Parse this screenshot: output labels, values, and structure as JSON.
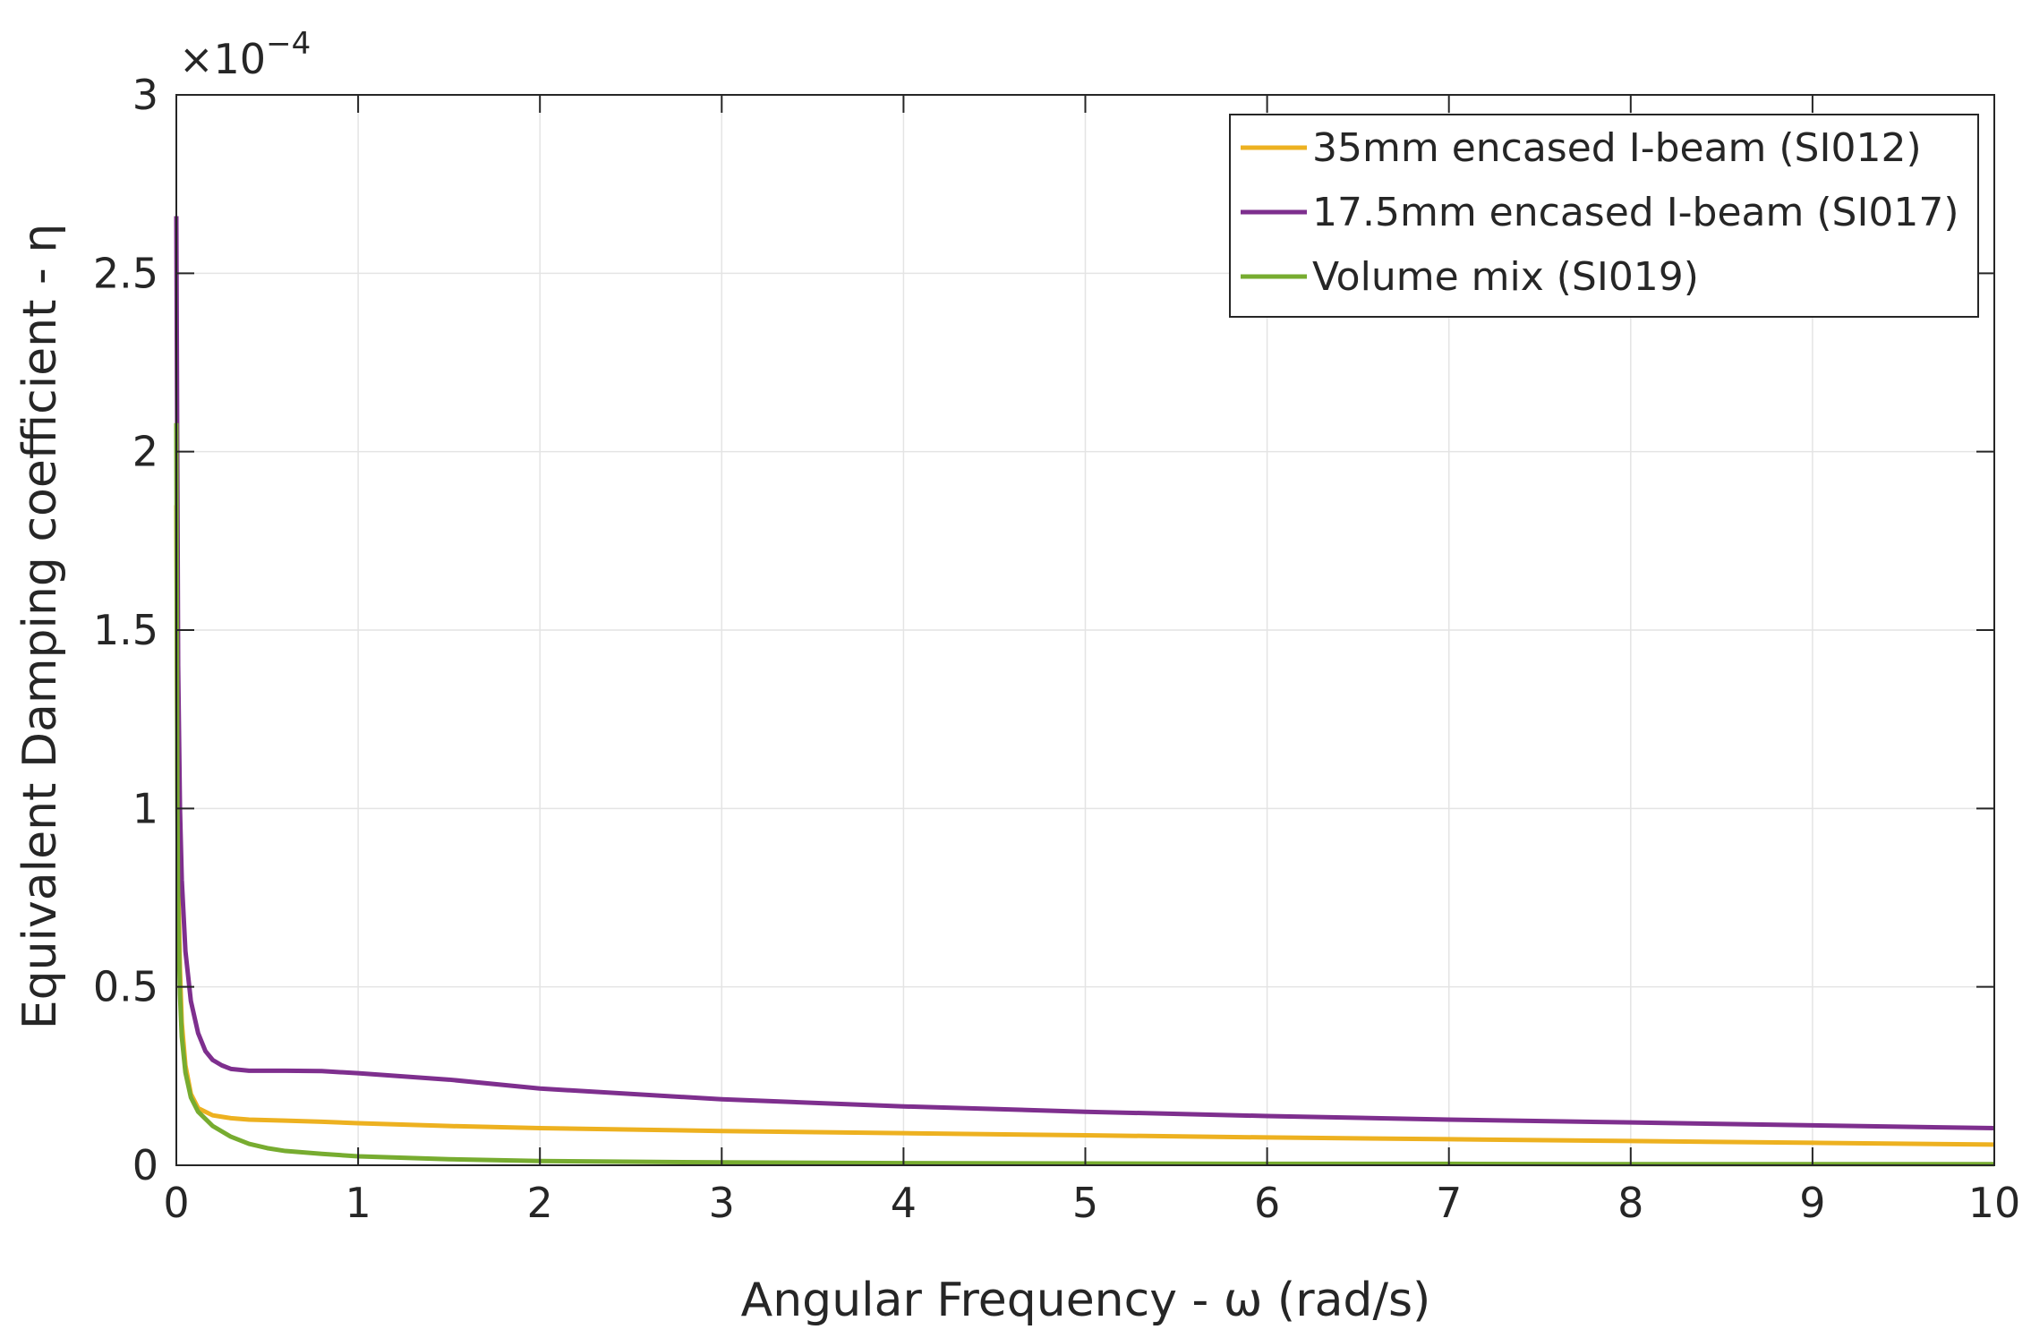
{
  "chart_data": {
    "type": "line",
    "title": "",
    "xlabel": "Angular Frequency - ω (rad/s)",
    "ylabel": "Equivalent Damping coefficient - η",
    "xlim": [
      0,
      10
    ],
    "ylim": [
      0,
      3
    ],
    "y_scale_label": "×10",
    "y_scale_exponent": "−4",
    "x_ticks": [
      0,
      1,
      2,
      3,
      4,
      5,
      6,
      7,
      8,
      9,
      10
    ],
    "x_tick_labels": [
      "0",
      "1",
      "2",
      "3",
      "4",
      "5",
      "6",
      "7",
      "8",
      "9",
      "10"
    ],
    "y_ticks": [
      0,
      0.5,
      1,
      1.5,
      2,
      2.5,
      3
    ],
    "y_tick_labels": [
      "0",
      "0.5",
      "1",
      "1.5",
      "2",
      "2.5",
      "3"
    ],
    "grid": true,
    "legend_position": "top-right",
    "series": [
      {
        "name": "35mm encased I-beam (SI012)",
        "color": "#EDB120",
        "x": [
          0,
          0.005,
          0.01,
          0.02,
          0.03,
          0.05,
          0.08,
          0.12,
          0.2,
          0.3,
          0.4,
          0.6,
          0.8,
          1,
          1.5,
          2,
          3,
          4,
          5,
          6,
          7,
          8,
          9,
          10
        ],
        "y": [
          1.85,
          1.2,
          0.8,
          0.55,
          0.4,
          0.28,
          0.2,
          0.16,
          0.14,
          0.132,
          0.128,
          0.125,
          0.122,
          0.118,
          0.11,
          0.104,
          0.096,
          0.09,
          0.084,
          0.078,
          0.073,
          0.068,
          0.063,
          0.058
        ]
      },
      {
        "name": "17.5mm encased I-beam (SI017)",
        "color": "#7E2F8E",
        "x": [
          0,
          0.005,
          0.01,
          0.02,
          0.03,
          0.05,
          0.08,
          0.12,
          0.16,
          0.2,
          0.25,
          0.3,
          0.4,
          0.6,
          0.8,
          1,
          1.5,
          2,
          3,
          4,
          5,
          6,
          7,
          8,
          9,
          10
        ],
        "y": [
          2.66,
          2.0,
          1.4,
          1.0,
          0.8,
          0.6,
          0.46,
          0.37,
          0.32,
          0.295,
          0.28,
          0.27,
          0.265,
          0.265,
          0.264,
          0.258,
          0.24,
          0.215,
          0.185,
          0.165,
          0.15,
          0.138,
          0.128,
          0.12,
          0.112,
          0.104
        ]
      },
      {
        "name": "Volume mix (SI019)",
        "color": "#77AC30",
        "x": [
          0,
          0.003,
          0.006,
          0.01,
          0.02,
          0.03,
          0.05,
          0.08,
          0.12,
          0.2,
          0.3,
          0.4,
          0.5,
          0.6,
          0.8,
          1,
          1.5,
          2,
          3,
          4,
          5,
          6,
          7,
          8,
          9,
          10
        ],
        "y": [
          2.08,
          1.5,
          1.0,
          0.72,
          0.48,
          0.36,
          0.26,
          0.19,
          0.15,
          0.11,
          0.08,
          0.06,
          0.048,
          0.04,
          0.032,
          0.025,
          0.017,
          0.012,
          0.008,
          0.006,
          0.005,
          0.004,
          0.004,
          0.003,
          0.003,
          0.003
        ]
      }
    ]
  }
}
